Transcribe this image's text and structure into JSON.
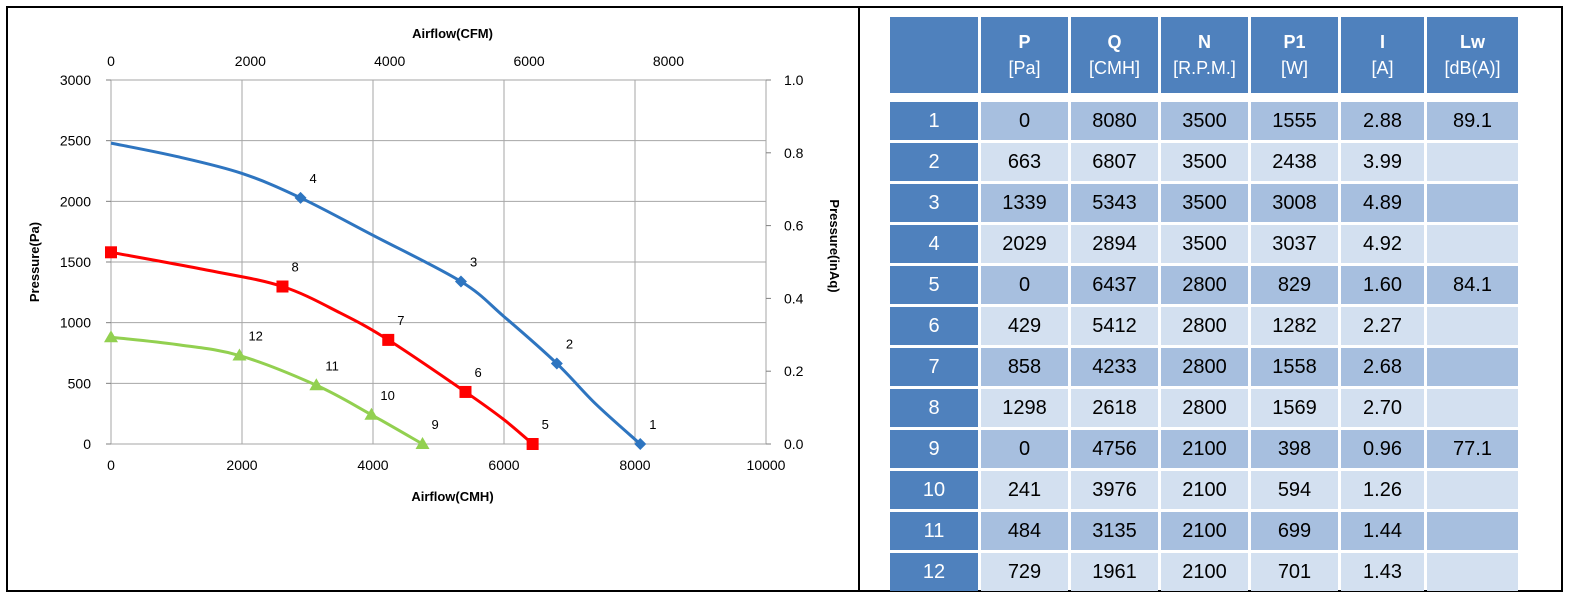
{
  "chart_data": {
    "type": "line",
    "xlabel": "Airflow(CMH)",
    "x2label": "Airflow(CFM)",
    "ylabel": "Pressure(Pa)",
    "y2label": "Pressure(inAq)",
    "xlim": [
      0,
      10000
    ],
    "ylim": [
      0,
      3000
    ],
    "x2lim": [
      0,
      9400
    ],
    "y2lim": [
      0,
      1.0
    ],
    "xticks": [
      "0",
      "2000",
      "4000",
      "6000",
      "8000",
      "10000"
    ],
    "yticks": [
      "0",
      "500",
      "1000",
      "1500",
      "2000",
      "2500",
      "3000"
    ],
    "x2ticks": [
      "0",
      "2000",
      "4000",
      "6000",
      "8000"
    ],
    "y2ticks": [
      "0.0",
      "0.2",
      "0.4",
      "0.6",
      "0.8",
      "1.0"
    ],
    "grid": true,
    "series": [
      {
        "color": "#2e75c0",
        "marker": "diamond",
        "curve": [
          [
            0,
            2480
          ],
          [
            1000,
            2370
          ],
          [
            2000,
            2230
          ],
          [
            2894,
            2029
          ],
          [
            4000,
            1720
          ],
          [
            5343,
            1339
          ],
          [
            6000,
            1050
          ],
          [
            6807,
            663
          ],
          [
            7400,
            330
          ],
          [
            8080,
            0
          ]
        ],
        "points": [
          {
            "label": "1",
            "x": 8080,
            "y": 0
          },
          {
            "label": "2",
            "x": 6807,
            "y": 663
          },
          {
            "label": "3",
            "x": 5343,
            "y": 1339
          },
          {
            "label": "4",
            "x": 2894,
            "y": 2029
          }
        ]
      },
      {
        "color": "#ff0000",
        "marker": "square",
        "curve": [
          [
            0,
            1580
          ],
          [
            1500,
            1430
          ],
          [
            2618,
            1298
          ],
          [
            3500,
            1080
          ],
          [
            4233,
            858
          ],
          [
            5412,
            429
          ],
          [
            6000,
            200
          ],
          [
            6437,
            0
          ]
        ],
        "points": [
          {
            "label": "5",
            "x": 6437,
            "y": 0
          },
          {
            "label": "6",
            "x": 5412,
            "y": 429
          },
          {
            "label": "7",
            "x": 4233,
            "y": 858
          },
          {
            "label": "8",
            "x": 2618,
            "y": 1298
          },
          {
            "label": "",
            "x": 0,
            "y": 1580
          }
        ]
      },
      {
        "color": "#92d050",
        "marker": "triangle",
        "curve": [
          [
            0,
            880
          ],
          [
            1000,
            820
          ],
          [
            1961,
            729
          ],
          [
            3135,
            484
          ],
          [
            3976,
            241
          ],
          [
            4756,
            0
          ]
        ],
        "points": [
          {
            "label": "9",
            "x": 4756,
            "y": 0
          },
          {
            "label": "10",
            "x": 3976,
            "y": 241
          },
          {
            "label": "11",
            "x": 3135,
            "y": 484
          },
          {
            "label": "12",
            "x": 1961,
            "y": 729
          },
          {
            "label": "",
            "x": 0,
            "y": 880
          }
        ]
      }
    ]
  },
  "table": {
    "headers": [
      {
        "name": "P",
        "unit": "[Pa]"
      },
      {
        "name": "Q",
        "unit": "[CMH]"
      },
      {
        "name": "N",
        "unit": "[R.P.M.]"
      },
      {
        "name": "P1",
        "unit": "[W]"
      },
      {
        "name": "I",
        "unit": "[A]"
      },
      {
        "name": "Lw",
        "unit": "[dB(A)]"
      }
    ],
    "rows": [
      [
        "1",
        "0",
        "8080",
        "3500",
        "1555",
        "2.88",
        "89.1"
      ],
      [
        "2",
        "663",
        "6807",
        "3500",
        "2438",
        "3.99",
        ""
      ],
      [
        "3",
        "1339",
        "5343",
        "3500",
        "3008",
        "4.89",
        ""
      ],
      [
        "4",
        "2029",
        "2894",
        "3500",
        "3037",
        "4.92",
        ""
      ],
      [
        "5",
        "0",
        "6437",
        "2800",
        "829",
        "1.60",
        "84.1"
      ],
      [
        "6",
        "429",
        "5412",
        "2800",
        "1282",
        "2.27",
        ""
      ],
      [
        "7",
        "858",
        "4233",
        "2800",
        "1558",
        "2.68",
        ""
      ],
      [
        "8",
        "1298",
        "2618",
        "2800",
        "1569",
        "2.70",
        ""
      ],
      [
        "9",
        "0",
        "4756",
        "2100",
        "398",
        "0.96",
        "77.1"
      ],
      [
        "10",
        "241",
        "3976",
        "2100",
        "594",
        "1.26",
        ""
      ],
      [
        "11",
        "484",
        "3135",
        "2100",
        "699",
        "1.44",
        ""
      ],
      [
        "12",
        "729",
        "1961",
        "2100",
        "701",
        "1.43",
        ""
      ]
    ]
  }
}
